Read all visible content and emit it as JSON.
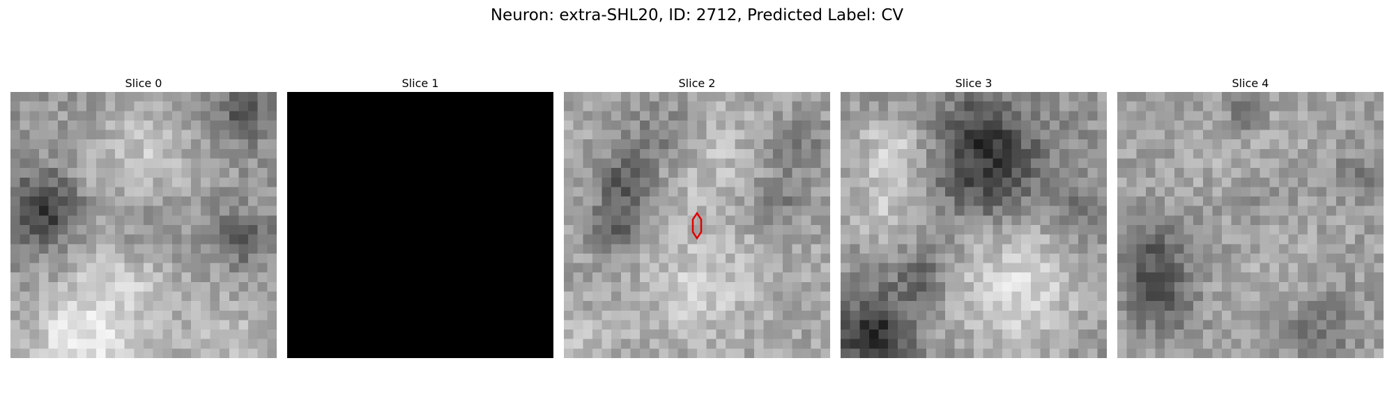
{
  "figure": {
    "title": "Neuron: extra-SHL20, ID: 2712, Predicted Label: CV"
  },
  "panels": [
    {
      "title": "Slice 0"
    },
    {
      "title": "Slice 1"
    },
    {
      "title": "Slice 2"
    },
    {
      "title": "Slice 3"
    },
    {
      "title": "Slice 4"
    }
  ],
  "colors": {
    "marker": "#e00000",
    "background": "#ffffff"
  }
}
